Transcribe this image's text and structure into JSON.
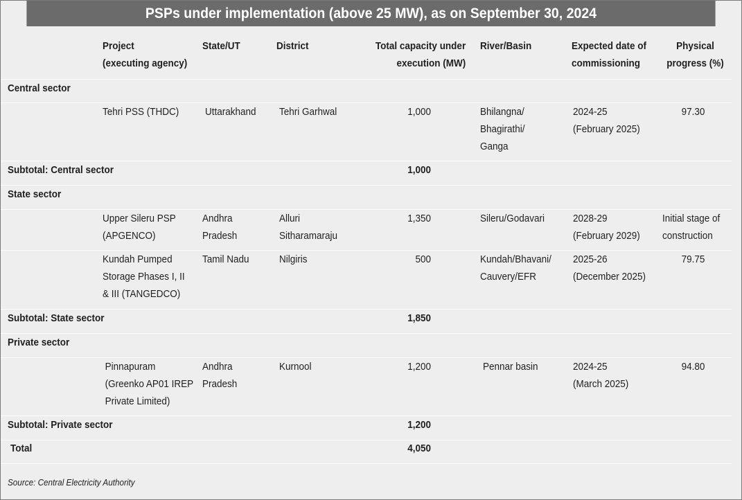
{
  "title": "PSPs under implementation (above 25 MW), as on September 30, 2024",
  "headers": {
    "project": "Project\n(executing agency)",
    "state": "State/UT",
    "district": "District",
    "capacity": "Total capacity under\nexecution (MW)",
    "river": "River/Basin",
    "commissioning": "Expected date of\ncommissioning",
    "progress": "Physical\nprogress (%)"
  },
  "sections": {
    "central": {
      "label": "Central sector",
      "rows": [
        {
          "project": "Tehri PSS (THDC)",
          "state": "Uttarakhand",
          "district": "Tehri Garhwal",
          "capacity": "1,000",
          "river": "Bhilangna/\nBhagirathi/\nGanga",
          "commissioning": "2024-25\n(February 2025)",
          "progress": "97.30"
        }
      ],
      "subtotal_label": "Subtotal: Central sector",
      "subtotal_value": "1,000"
    },
    "state": {
      "label": "State sector",
      "rows": [
        {
          "project": "Upper Sileru PSP\n(APGENCO)",
          "state": "Andhra\nPradesh",
          "district": "Alluri\nSitharamaraju",
          "capacity": "1,350",
          "river": "Sileru/Godavari",
          "commissioning": "2028-29\n(February 2029)",
          "progress": "Initial stage of\nconstruction"
        },
        {
          "project": "Kundah Pumped\nStorage Phases I, II\n& III (TANGEDCO)",
          "state": "Tamil Nadu",
          "district": "Nilgiris",
          "capacity": "500",
          "river": "Kundah/Bhavani/\nCauvery/EFR",
          "commissioning": "2025-26\n(December 2025)",
          "progress": "79.75"
        }
      ],
      "subtotal_label": "Subtotal: State sector",
      "subtotal_value": "1,850"
    },
    "private": {
      "label": "Private sector",
      "rows": [
        {
          "project": "Pinnapuram\n(Greenko AP01 IREP\nPrivate Limited)",
          "state": "Andhra\nPradesh",
          "district": "Kurnool",
          "capacity": "1,200",
          "river": "Pennar basin",
          "commissioning": "2024-25\n(March 2025)",
          "progress": "94.80"
        }
      ],
      "subtotal_label": "Subtotal: Private sector",
      "subtotal_value": "1,200"
    }
  },
  "total": {
    "label": "Total",
    "value": "4,050"
  },
  "source": "Source: Central Electricity Authority"
}
